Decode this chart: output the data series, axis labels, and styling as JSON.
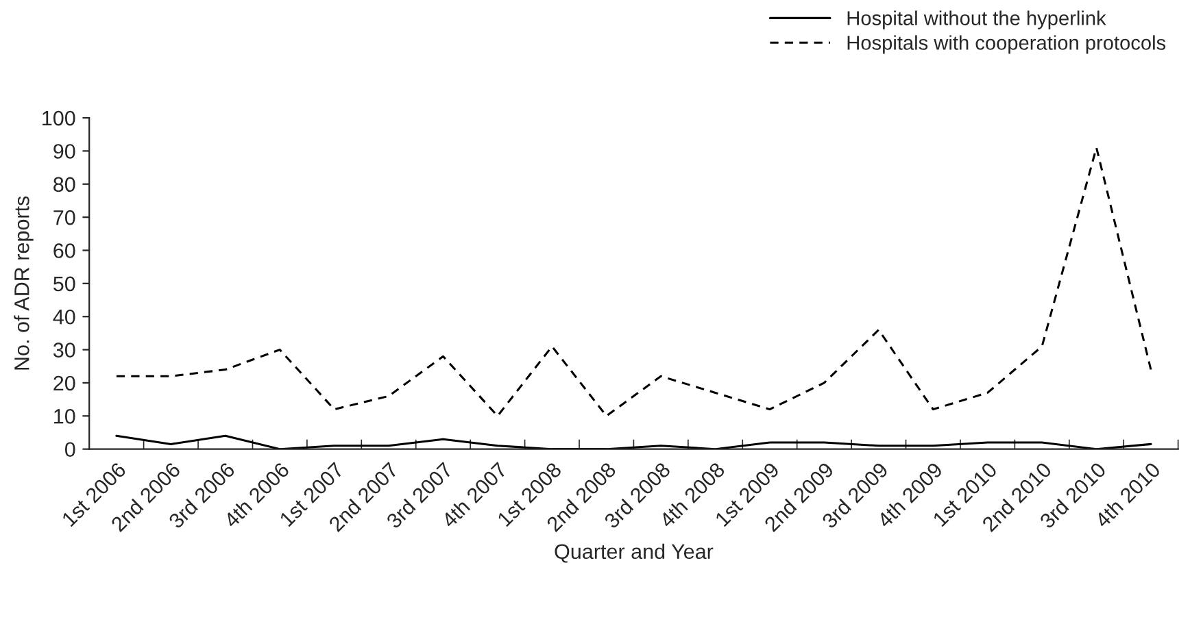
{
  "chart_data": {
    "type": "line",
    "xlabel": "Quarter and Year",
    "ylabel": "No. of ADR reports",
    "categories": [
      "1st 2006",
      "2nd 2006",
      "3rd 2006",
      "4th 2006",
      "1st 2007",
      "2nd 2007",
      "3rd 2007",
      "4th 2007",
      "1st 2008",
      "2nd 2008",
      "3rd 2008",
      "4th 2008",
      "1st 2009",
      "2nd 2009",
      "3rd 2009",
      "4th 2009",
      "1st 2010",
      "2nd 2010",
      "3rd 2010",
      "4th 2010"
    ],
    "series": [
      {
        "name": "Hospital without the hyperlink",
        "color": "#000000",
        "line_style": "solid",
        "values": [
          4,
          1.5,
          4,
          0,
          1,
          1,
          3,
          1,
          0,
          0,
          1,
          0,
          2,
          2,
          1,
          1,
          2,
          2,
          0,
          1.5
        ]
      },
      {
        "name": "Hospitals with cooperation protocols",
        "color": "#000000",
        "line_style": "dashed",
        "values": [
          22,
          22,
          24,
          30,
          12,
          16,
          28,
          10,
          31,
          10,
          22,
          17,
          12,
          20,
          36,
          12,
          17,
          31,
          91,
          24
        ]
      }
    ],
    "ylim": [
      0,
      100
    ],
    "yticks": [
      0,
      10,
      20,
      30,
      40,
      50,
      60,
      70,
      80,
      90,
      100
    ],
    "grid": false,
    "legend": "top right",
    "marker": "none"
  }
}
